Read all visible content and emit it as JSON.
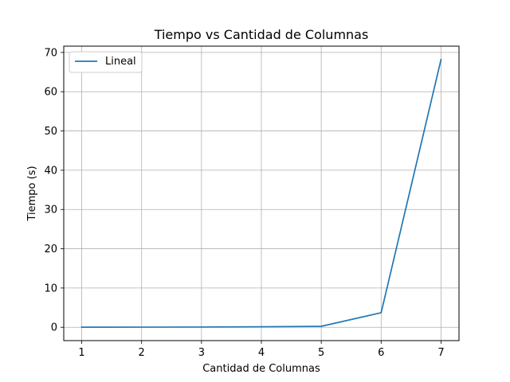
{
  "chart_data": {
    "type": "line",
    "title": "Tiempo vs Cantidad de Columnas",
    "xlabel": "Cantidad de Columnas",
    "ylabel": "Tiempo (s)",
    "x": [
      1,
      2,
      3,
      4,
      5,
      6,
      7
    ],
    "series": [
      {
        "name": "Lineal",
        "color": "#1f77b4",
        "values": [
          0.02,
          0.03,
          0.06,
          0.12,
          0.25,
          3.7,
          68.2
        ]
      }
    ],
    "xticks": [
      "1",
      "2",
      "3",
      "4",
      "5",
      "6",
      "7"
    ],
    "yticks": [
      "0",
      "10",
      "20",
      "30",
      "40",
      "50",
      "60",
      "70"
    ],
    "xlim": [
      0.7,
      7.3
    ],
    "ylim": [
      -3.4,
      71.6
    ],
    "grid": true,
    "legend_position": "top-left"
  }
}
